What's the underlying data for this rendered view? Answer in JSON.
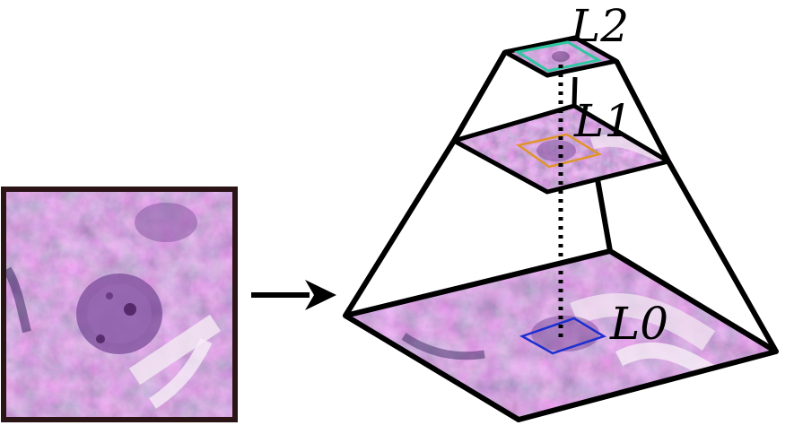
{
  "levels": {
    "l2": {
      "label": "L2",
      "box_color": "#2ec7a0"
    },
    "l1": {
      "label": "L1",
      "box_color": "#e0952a"
    },
    "l0": {
      "label": "L0",
      "box_color": "#1c2fd0"
    }
  },
  "colors": {
    "tissue_base": "#b87ab8",
    "tissue_light": "#e8cde6",
    "tissue_dark": "#5a2a70",
    "patch_border": "#2a1416",
    "outline": "#000000"
  },
  "icons": {
    "arrow": "right-arrow-icon"
  }
}
